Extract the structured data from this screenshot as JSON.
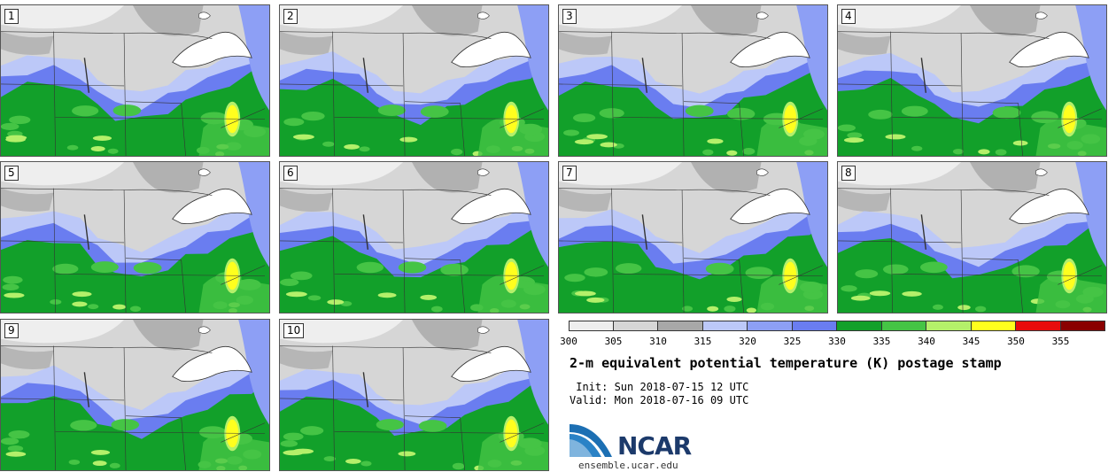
{
  "panels": [
    "1",
    "2",
    "3",
    "4",
    "5",
    "6",
    "7",
    "8",
    "9",
    "10"
  ],
  "colorbar": {
    "ticks": [
      "300",
      "305",
      "310",
      "315",
      "320",
      "325",
      "330",
      "335",
      "340",
      "345",
      "350",
      "355"
    ],
    "colors": [
      "#eeeeee",
      "#d6d6d6",
      "#a8a8a8",
      "#bcc8f8",
      "#8d9ff5",
      "#6a7df0",
      "#12a02a",
      "#45c445",
      "#b4f06a",
      "#ffff1e",
      "#e80c0c",
      "#8a0000"
    ]
  },
  "title": "2-m equivalent potential temperature (K) postage stamp",
  "init": " Init: Sun 2018-07-15 12 UTC",
  "valid": "Valid: Mon 2018-07-16 09 UTC",
  "logo": {
    "name": "NCAR",
    "url": "ensemble.ucar.edu"
  }
}
